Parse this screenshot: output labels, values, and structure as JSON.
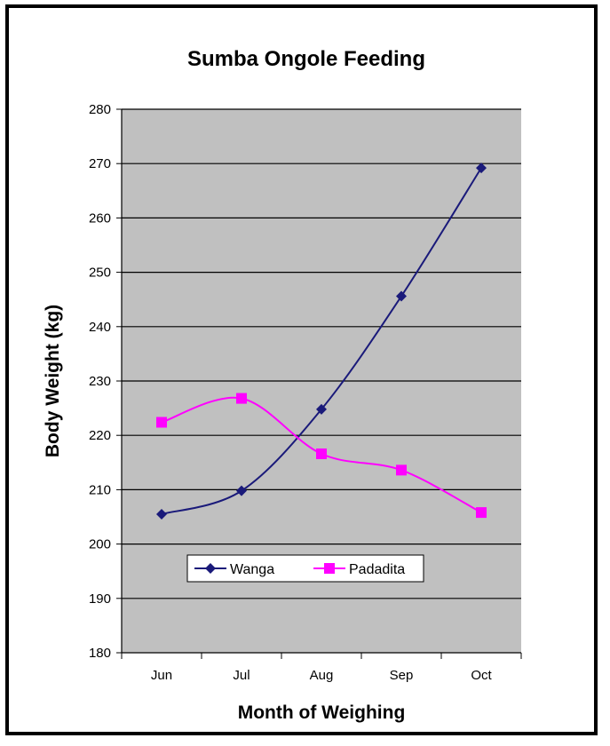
{
  "chart_data": {
    "type": "line",
    "title": "Sumba Ongole Feeding",
    "xlabel": "Month of Weighing",
    "ylabel": "Body Weight (kg)",
    "categories": [
      "Jun",
      "Jul",
      "Aug",
      "Sep",
      "Oct"
    ],
    "ylim": [
      180,
      280
    ],
    "yticks": [
      180,
      190,
      200,
      210,
      220,
      230,
      240,
      250,
      260,
      270,
      280
    ],
    "grid": true,
    "plot_background": "#c0c0c0",
    "legend_position": "inside-bottom-left",
    "series": [
      {
        "name": "Wanga",
        "values": [
          205.5,
          209.8,
          224.8,
          245.6,
          269.2
        ],
        "color": "#1a1a7a",
        "marker": "diamond"
      },
      {
        "name": "Padadita",
        "values": [
          222.4,
          226.8,
          216.6,
          213.6,
          205.8
        ],
        "color": "#ff00ff",
        "marker": "square"
      }
    ]
  }
}
